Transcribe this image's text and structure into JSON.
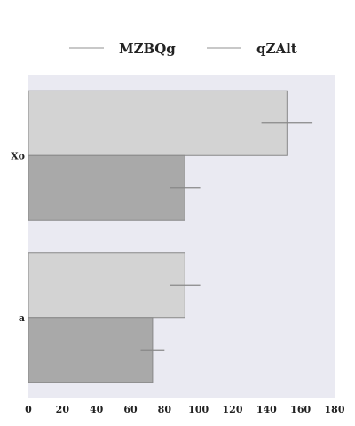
{
  "chart_data": {
    "type": "bar",
    "orientation": "horizontal",
    "categories": [
      "Xo",
      "a"
    ],
    "series": [
      {
        "name": "MZBQg",
        "values": [
          152,
          92
        ],
        "errors": [
          15,
          9
        ],
        "color": "#d3d3d3"
      },
      {
        "name": "qZAlt",
        "values": [
          92,
          73
        ],
        "errors": [
          9,
          7
        ],
        "color": "#a9a9a9"
      }
    ],
    "xlim": [
      0,
      180
    ],
    "xticks": [
      "0",
      "20",
      "40",
      "60",
      "80",
      "100",
      "120",
      "140",
      "160",
      "180"
    ],
    "title": "",
    "xlabel": "",
    "ylabel": "",
    "legend_position": "top",
    "grid": false,
    "plot_background": "#eaeaf2",
    "bar_edge_color": "#888888",
    "errorbar_color": "#888888"
  }
}
